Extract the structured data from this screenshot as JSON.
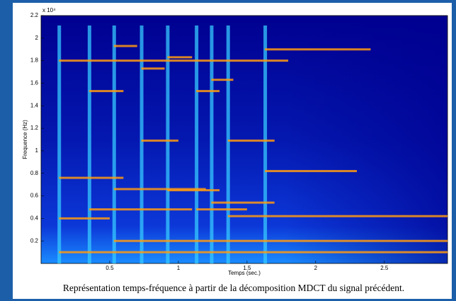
{
  "chart_data": {
    "type": "spectrogram",
    "xlabel": "Temps (sec.)",
    "ylabel": "Frequence (Hz)",
    "y_exponent": "x 10⁴",
    "caption": "Représentation temps-fréquence à partir de la décomposition MDCT du signal précédent.",
    "xlim": [
      0,
      2.96
    ],
    "ylim": [
      0,
      2.2
    ],
    "xticks": [
      0.5,
      1,
      1.5,
      2,
      2.5
    ],
    "yticks": [
      0.2,
      0.4,
      0.6,
      0.8,
      1,
      1.2,
      1.4,
      1.6,
      1.8,
      2,
      2.2
    ],
    "onsets": [
      0.13,
      0.35,
      0.53,
      0.73,
      0.92,
      1.13,
      1.24,
      1.36,
      1.63
    ],
    "onset_color": "#35c8ff",
    "partial_color": "#ff9a10",
    "partials": [
      {
        "start": 0.13,
        "end": 0.6,
        "freq": 0.76
      },
      {
        "start": 0.53,
        "end": 1.2,
        "freq": 0.66
      },
      {
        "start": 0.92,
        "end": 1.3,
        "freq": 0.65
      },
      {
        "start": 1.24,
        "end": 1.7,
        "freq": 0.54
      },
      {
        "start": 1.63,
        "end": 2.3,
        "freq": 0.82
      },
      {
        "start": 1.63,
        "end": 2.4,
        "freq": 1.9
      },
      {
        "start": 0.73,
        "end": 1.0,
        "freq": 1.09
      },
      {
        "start": 1.36,
        "end": 1.7,
        "freq": 1.09
      },
      {
        "start": 0.35,
        "end": 0.6,
        "freq": 1.53
      },
      {
        "start": 0.53,
        "end": 0.7,
        "freq": 1.93
      },
      {
        "start": 0.73,
        "end": 0.9,
        "freq": 1.73
      },
      {
        "start": 0.92,
        "end": 1.1,
        "freq": 1.83
      },
      {
        "start": 1.13,
        "end": 1.3,
        "freq": 1.53
      },
      {
        "start": 1.24,
        "end": 1.4,
        "freq": 1.63
      },
      {
        "start": 0.13,
        "end": 0.5,
        "freq": 0.4
      },
      {
        "start": 0.35,
        "end": 1.1,
        "freq": 0.48
      },
      {
        "start": 1.13,
        "end": 1.5,
        "freq": 0.48
      },
      {
        "start": 0.53,
        "end": 2.96,
        "freq": 0.2
      },
      {
        "start": 0.13,
        "end": 2.96,
        "freq": 0.1
      },
      {
        "start": 0.13,
        "end": 1.8,
        "freq": 1.8
      },
      {
        "start": 1.36,
        "end": 2.96,
        "freq": 0.42
      }
    ]
  }
}
